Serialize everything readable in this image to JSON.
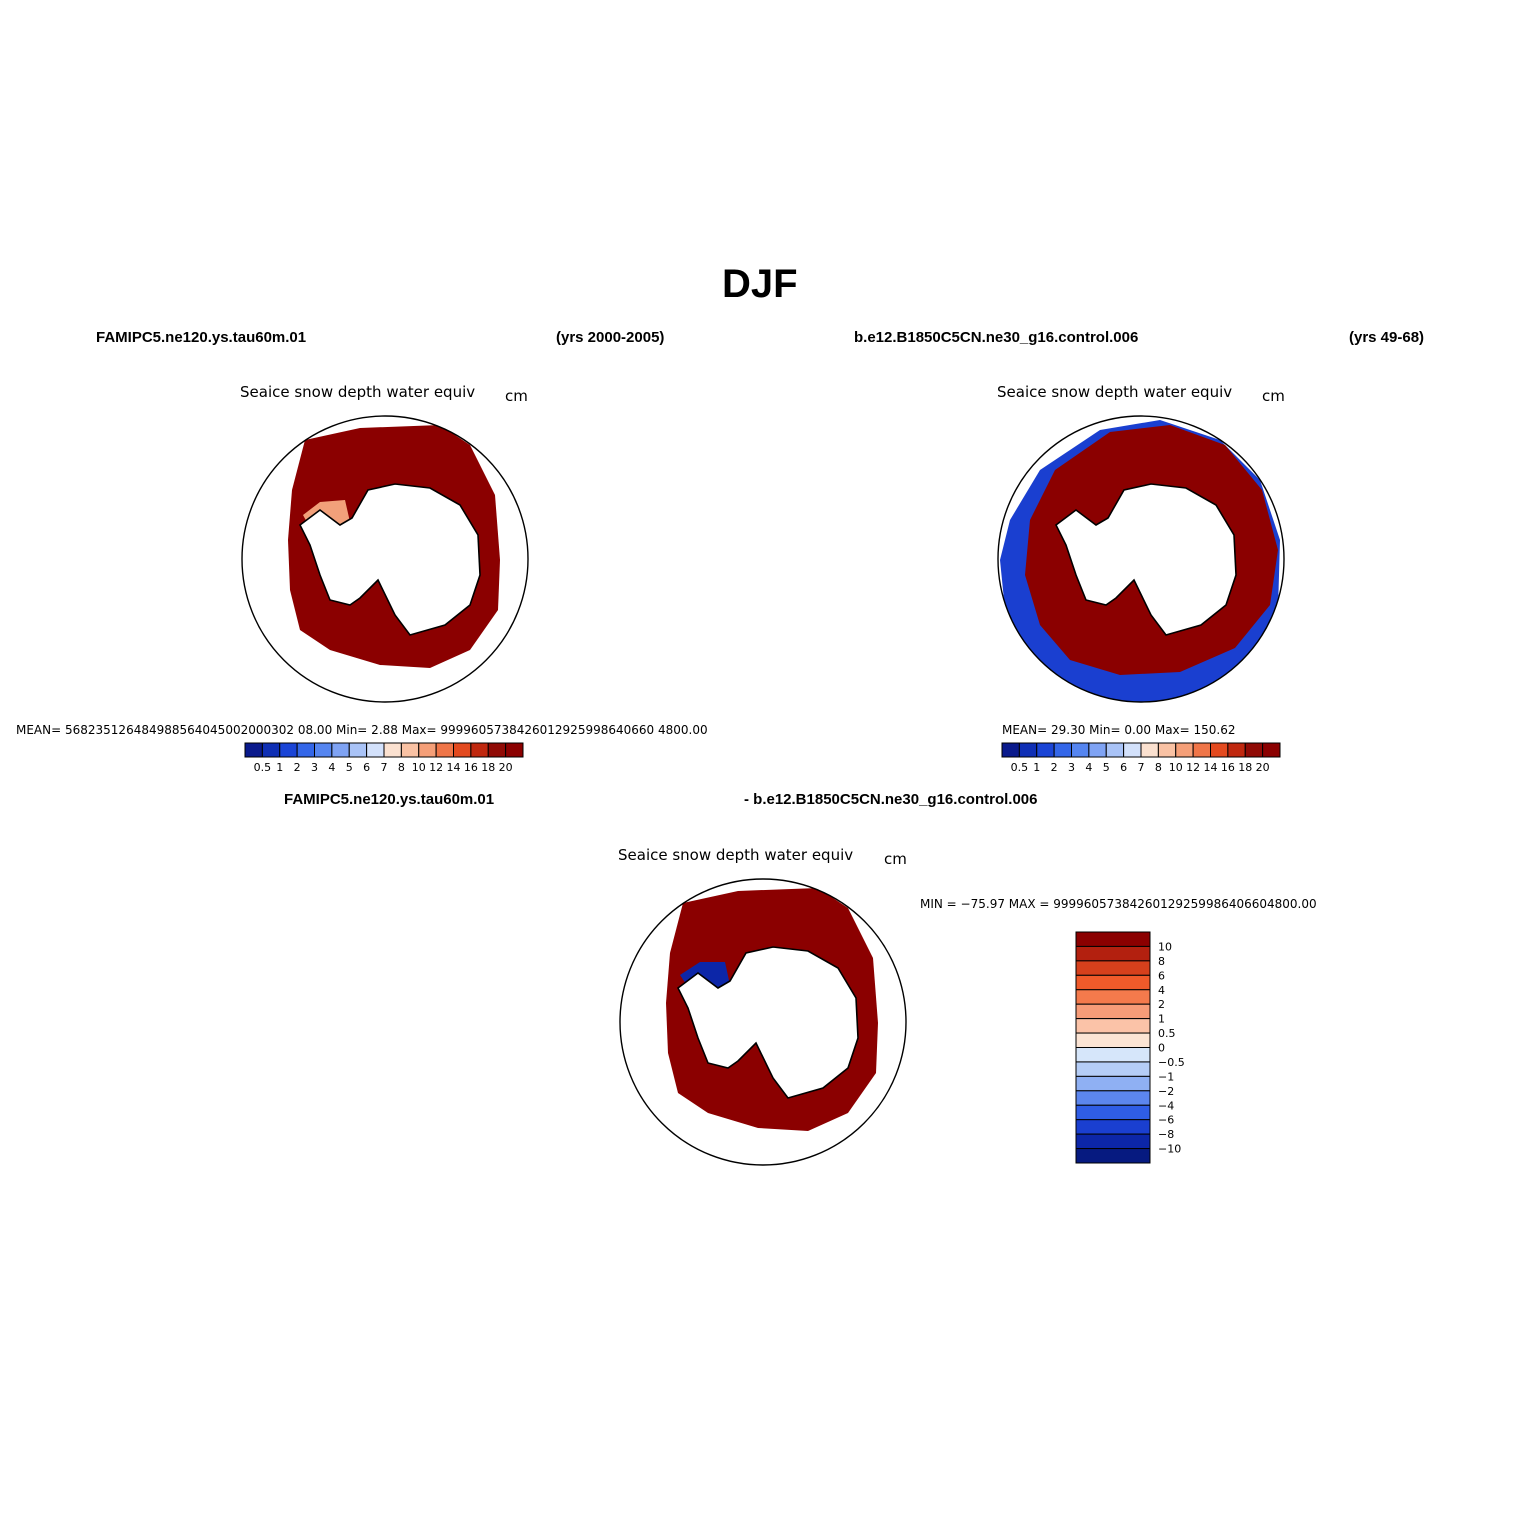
{
  "figure": {
    "title": "DJF"
  },
  "panels": [
    {
      "case": "FAMIPC5.ne120.ys.tau60m.01",
      "years": "(yrs 2000-2005)",
      "variable": "Seaice snow depth water equiv",
      "units": "cm",
      "stats": "MEAN= 568235126484988564045002000302 08.00   Min=     2.88   Max= 9999605738426012925998640660 4800.00"
    },
    {
      "case": "b.e12.B1850C5CN.ne30_g16.control.006",
      "years": "(yrs 49-68)",
      "variable": "Seaice snow depth water equiv",
      "units": "cm",
      "stats": "MEAN=   29.30   Min=     0.00   Max=  150.62"
    },
    {
      "case": "FAMIPC5.ne120.ys.tau60m.01",
      "case2": "- b.e12.B1850C5CN.ne30_g16.control.006",
      "variable": "Seaice snow depth water equiv",
      "units": "cm",
      "stats": "MIN = −75.97 MAX = 99996057384260129259986406604800.00"
    }
  ],
  "colorbar_abs": {
    "labels": [
      "0.5",
      "1",
      "2",
      "3",
      "4",
      "5",
      "6",
      "7",
      "8",
      "10",
      "12",
      "14",
      "16",
      "18",
      "20"
    ],
    "colors": [
      "#0a1a8c",
      "#0f2fb5",
      "#1a44d6",
      "#3366e8",
      "#5585f0",
      "#7fa3f4",
      "#a9c3f7",
      "#d3e1fb",
      "#fbe1d0",
      "#f9c2a4",
      "#f59f78",
      "#ef7548",
      "#e34a1f",
      "#c0280f",
      "#900a05",
      "#8b0000"
    ]
  },
  "colorbar_diff": {
    "labels": [
      "10",
      "8",
      "6",
      "4",
      "2",
      "1",
      "0.5",
      "0",
      "−0.5",
      "−1",
      "−2",
      "−4",
      "−6",
      "−8",
      "−10"
    ],
    "colors": [
      "#8b0000",
      "#b3200f",
      "#d6401c",
      "#f05a2a",
      "#f47a4c",
      "#f79c78",
      "#fbc3a8",
      "#fbe4d4",
      "#d6e6fa",
      "#b5cdf6",
      "#8fb0f3",
      "#5c86ee",
      "#2f5de6",
      "#1a3fd0",
      "#0c26a8",
      "#061a80"
    ]
  },
  "style": {
    "ice_color": "#8b0000",
    "low_color": "#1a3fd0",
    "mid_color": "#f2a07a",
    "continent_fill": "#ffffff"
  }
}
